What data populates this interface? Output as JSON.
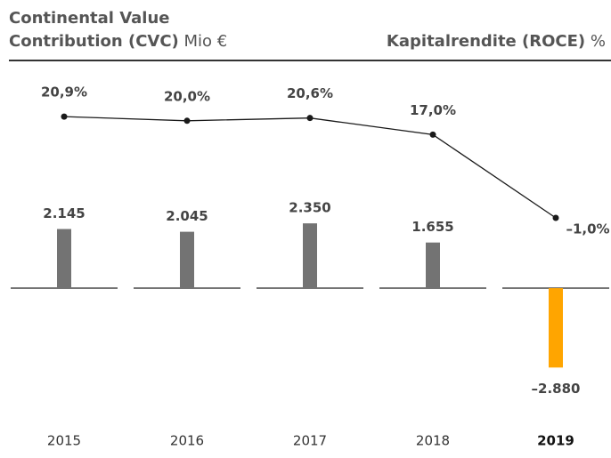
{
  "chart_data": {
    "type": "bar_line",
    "y_label": {
      "lines": [
        "Continental Value",
        "Contribution (CVC)"
      ],
      "unit": "Mio €"
    },
    "y2_label": {
      "text": "Kapitalrendite (ROCE)",
      "unit": "%"
    },
    "categories": [
      "2015",
      "2016",
      "2017",
      "2018",
      "2019"
    ],
    "highlight_category": 4,
    "series": [
      {
        "type": "bar",
        "values": [
          2145,
          2045,
          2350,
          1655,
          -2880
        ],
        "value_labels": [
          "2.145",
          "2.045",
          "2.350",
          "1.655",
          "–2.880"
        ],
        "colors": [
          "#737373",
          "#737373",
          "#737373",
          "#737373",
          "#ffa500"
        ]
      },
      {
        "type": "line",
        "axis": "y2",
        "color": "#1a1a1a",
        "values": [
          20.9,
          20.0,
          20.6,
          17.0,
          -1.0
        ],
        "value_labels": [
          "20,9%",
          "20,0%",
          "20,6%",
          "17,0%",
          "–1,0%"
        ]
      }
    ],
    "ylim": [
      -5000,
      8000
    ],
    "yticks": [
      0
    ],
    "y2lim": [
      -46,
      31.5
    ]
  }
}
